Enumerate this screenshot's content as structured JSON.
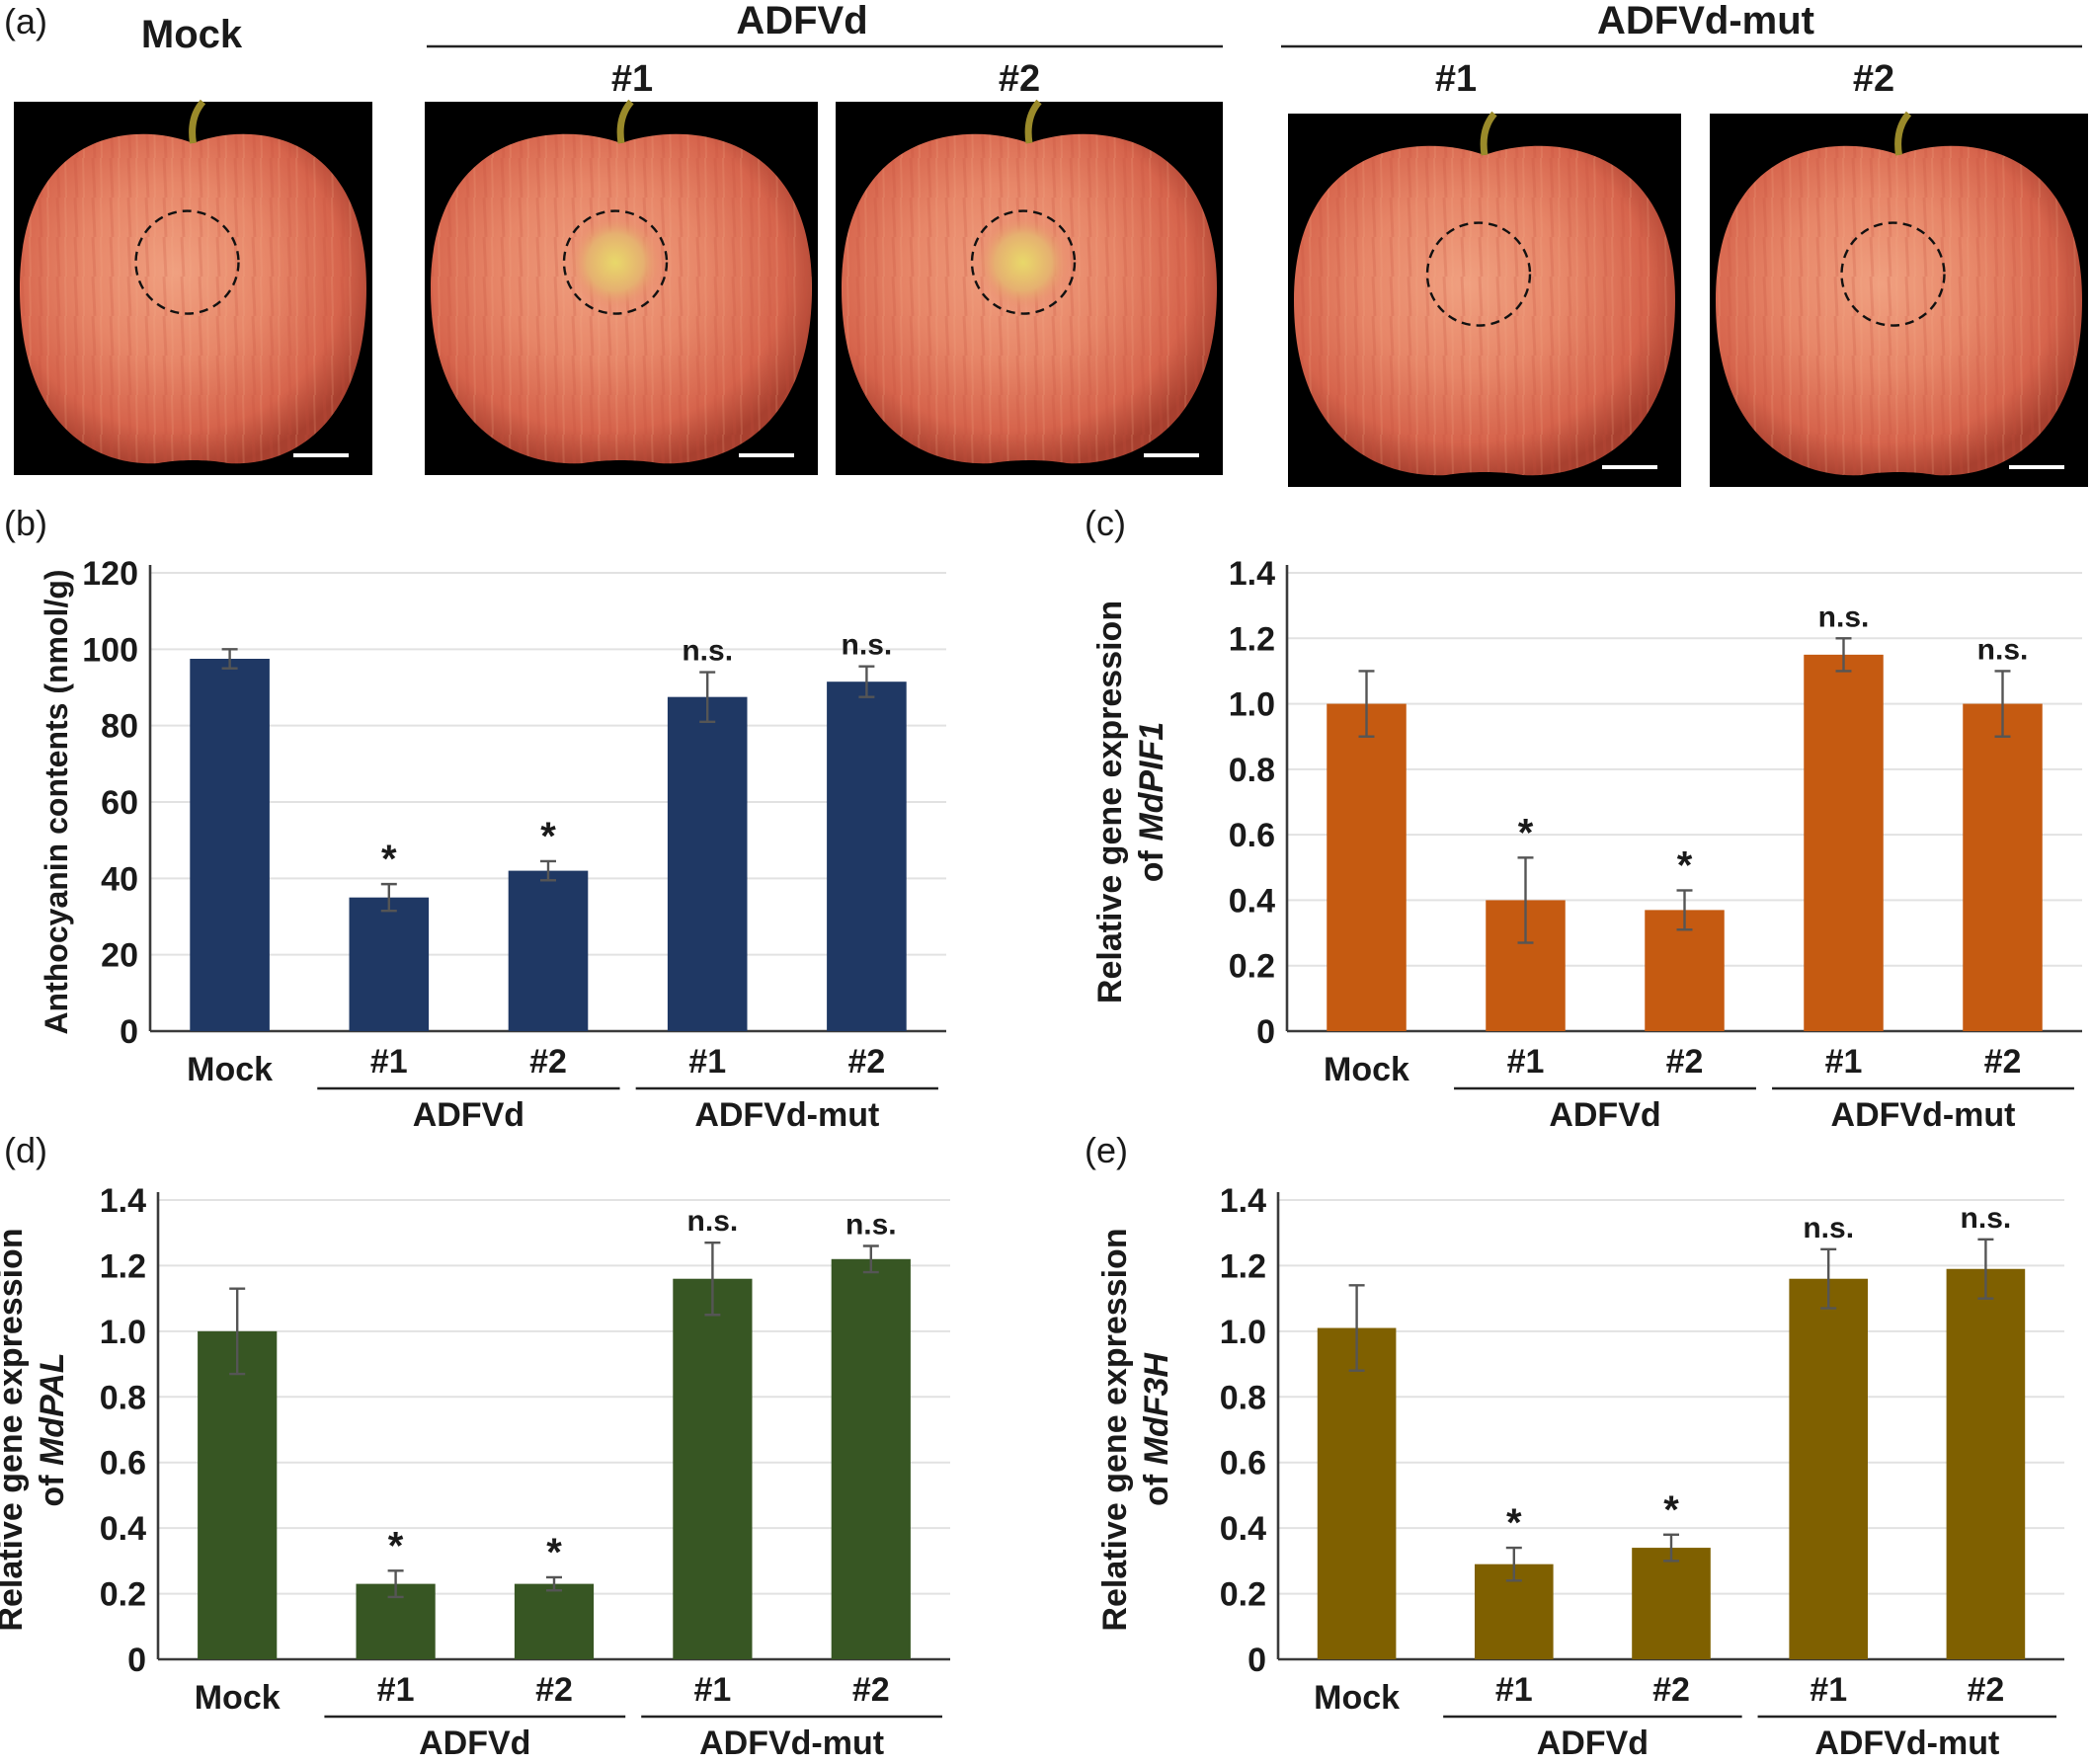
{
  "figure": {
    "panel_a": {
      "label": "(a)",
      "mock_title": "Mock",
      "group1_title": "ADFVd",
      "group2_title": "ADFVd-mut",
      "replicate1": "#1",
      "replicate2": "#2",
      "photo_labels": [
        "Mock",
        "ADFVd #1",
        "ADFVd #2",
        "ADFVd-mut #1",
        "ADFVd-mut #2"
      ]
    },
    "colors": {
      "b": "#1f3864",
      "c": "#c55a11",
      "d": "#375623",
      "e": "#7f6000",
      "photo_background": "#000000"
    }
  },
  "chart_data": [
    {
      "id": "b",
      "type": "bar",
      "panel_label": "(b)",
      "ylabel": "Anthocyanin contents (nmol/g)",
      "ylabel_gene": "",
      "categories": [
        "Mock",
        "#1",
        "#2",
        "#1",
        "#2"
      ],
      "groups": [
        {
          "name": "ADFVd",
          "from": 1,
          "to": 2
        },
        {
          "name": "ADFVd-mut",
          "from": 3,
          "to": 4
        }
      ],
      "values": [
        97.5,
        35,
        42,
        87.5,
        91.5
      ],
      "errors": [
        2.5,
        3.5,
        2.5,
        6.5,
        4.0
      ],
      "annotations": [
        "",
        "*",
        "*",
        "n.s.",
        "n.s."
      ],
      "ylim": [
        0,
        120
      ],
      "yticks": [
        0,
        20,
        40,
        60,
        80,
        100,
        120
      ],
      "ytick_labels": [
        "0",
        "20",
        "40",
        "60",
        "80",
        "100",
        "120"
      ],
      "grid": true
    },
    {
      "id": "c",
      "type": "bar",
      "panel_label": "(c)",
      "ylabel": "Relative gene expression",
      "ylabel_of": "of",
      "ylabel_gene": "MdPIF1",
      "categories": [
        "Mock",
        "#1",
        "#2",
        "#1",
        "#2"
      ],
      "groups": [
        {
          "name": "ADFVd",
          "from": 1,
          "to": 2
        },
        {
          "name": "ADFVd-mut",
          "from": 3,
          "to": 4
        }
      ],
      "values": [
        1.0,
        0.4,
        0.37,
        1.15,
        1.0
      ],
      "errors": [
        0.1,
        0.13,
        0.06,
        0.05,
        0.1
      ],
      "annotations": [
        "",
        "*",
        "*",
        "n.s.",
        "n.s."
      ],
      "ylim": [
        0,
        1.4
      ],
      "yticks": [
        0,
        0.2,
        0.4,
        0.6,
        0.8,
        1.0,
        1.2,
        1.4
      ],
      "ytick_labels": [
        "0",
        "0.2",
        "0.4",
        "0.6",
        "0.8",
        "1.0",
        "1.2",
        "1.4"
      ],
      "grid": true
    },
    {
      "id": "d",
      "type": "bar",
      "panel_label": "(d)",
      "ylabel": "Relative gene expression",
      "ylabel_of": "of",
      "ylabel_gene": "MdPAL",
      "categories": [
        "Mock",
        "#1",
        "#2",
        "#1",
        "#2"
      ],
      "groups": [
        {
          "name": "ADFVd",
          "from": 1,
          "to": 2
        },
        {
          "name": "ADFVd-mut",
          "from": 3,
          "to": 4
        }
      ],
      "values": [
        1.0,
        0.23,
        0.23,
        1.16,
        1.22
      ],
      "errors": [
        0.13,
        0.04,
        0.02,
        0.11,
        0.04
      ],
      "annotations": [
        "",
        "*",
        "*",
        "n.s.",
        "n.s."
      ],
      "ylim": [
        0,
        1.4
      ],
      "yticks": [
        0,
        0.2,
        0.4,
        0.6,
        0.8,
        1.0,
        1.2,
        1.4
      ],
      "ytick_labels": [
        "0",
        "0.2",
        "0.4",
        "0.6",
        "0.8",
        "1.0",
        "1.2",
        "1.4"
      ],
      "grid": true
    },
    {
      "id": "e",
      "type": "bar",
      "panel_label": "(e)",
      "ylabel": "Relative gene expression",
      "ylabel_of": "of",
      "ylabel_gene": "MdF3H",
      "categories": [
        "Mock",
        "#1",
        "#2",
        "#1",
        "#2"
      ],
      "groups": [
        {
          "name": "ADFVd",
          "from": 1,
          "to": 2
        },
        {
          "name": "ADFVd-mut",
          "from": 3,
          "to": 4
        }
      ],
      "values": [
        1.01,
        0.29,
        0.34,
        1.16,
        1.19
      ],
      "errors": [
        0.13,
        0.05,
        0.04,
        0.09,
        0.09
      ],
      "annotations": [
        "",
        "*",
        "*",
        "n.s.",
        "n.s."
      ],
      "ylim": [
        0,
        1.4
      ],
      "yticks": [
        0,
        0.2,
        0.4,
        0.6,
        0.8,
        1.0,
        1.2,
        1.4
      ],
      "ytick_labels": [
        "0",
        "0.2",
        "0.4",
        "0.6",
        "0.8",
        "1.0",
        "1.2",
        "1.4"
      ],
      "grid": true
    }
  ]
}
